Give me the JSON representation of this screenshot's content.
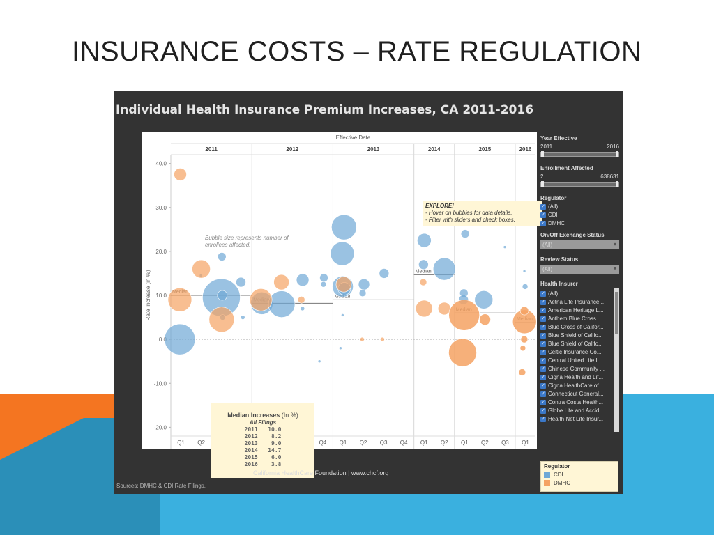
{
  "slide": {
    "title": "INSURANCE COSTS – RATE REGULATION"
  },
  "dashboard": {
    "title": "Individual Health Insurance Premium Increases, CA 2011-2016",
    "effective_date_label": "Effective Date",
    "footer": "California HealthCare Foundation  |  www.chcf.org",
    "sources": "Sources:  DMHC &  CDI Rate Filings."
  },
  "notes": {
    "bubble_size": "Bubble size represents number of enrollees affected.",
    "explore_title": "EXPLORE!",
    "explore_line1": "- Hover on bubbles for data details.",
    "explore_line2": "- Filter with sliders and check boxes."
  },
  "median_box": {
    "title": "Median Increases",
    "unit": "(In %)",
    "subtitle": "All Filings",
    "rows": "2011   10.0\n2012    8.2\n2013    9.0\n2014   14.7\n2015    6.0\n2016    3.8"
  },
  "filters": {
    "year_effective": {
      "label": "Year Effective",
      "min": "2011",
      "max": "2016"
    },
    "enrollment": {
      "label": "Enrollment Affected",
      "min": "2",
      "max": "638631"
    },
    "regulator": {
      "label": "Regulator",
      "options": [
        "(All)",
        "CDI",
        "DMHC"
      ]
    },
    "exchange_status": {
      "label": "On/Off Exchange Status",
      "value": "(All)"
    },
    "review_status": {
      "label": "Review Status",
      "value": "(All)"
    },
    "health_insurer": {
      "label": "Health Insurer",
      "options": [
        "(All)",
        "Aetna Life Insurance...",
        "American Heritage L...",
        "Anthem Blue Cross ...",
        "Blue Cross of Califor...",
        "Blue Shield of Califo...",
        "Blue Shield of Califo...",
        "Celtic Insurance Co...",
        "Central United Life I...",
        "Chinese Community ...",
        "Cigna Health and Lif...",
        "Cigna HealthCare of...",
        "Connecticut General...",
        "Contra Costa Health...",
        "Globe Life and Accid...",
        "Health Net Life Insur..."
      ]
    }
  },
  "legend": {
    "title": "Regulator",
    "items": [
      {
        "label": "CDI",
        "color": "#6fa8d6"
      },
      {
        "label": "DMHC",
        "color": "#f5a263"
      }
    ]
  },
  "chart_data": {
    "type": "scatter",
    "title": "Individual Health Insurance Premium Increases, CA 2011-2016",
    "ylabel": "Rate Increase (in %)",
    "xlabel": "Effective Date",
    "ylim": [
      -22,
      42
    ],
    "yticks": [
      "40.0",
      "30.0",
      "20.0",
      "10.0",
      "0.0",
      "-10.0",
      "-20.0"
    ],
    "years": [
      "2011",
      "2012",
      "2013",
      "2014",
      "2015",
      "2016"
    ],
    "quarters": [
      "Q1",
      "Q2",
      "Q3",
      "Q4",
      "Q1",
      "Q2",
      "Q3",
      "Q4",
      "Q1",
      "Q2",
      "Q3",
      "Q4",
      "Q1",
      "Q2",
      "Q1",
      "Q2",
      "Q3",
      "Q1"
    ],
    "medians": [
      {
        "year": "2011",
        "value": 10.0,
        "label": "Median"
      },
      {
        "year": "2012",
        "value": 8.2,
        "label": "Median"
      },
      {
        "year": "2013",
        "value": 9.0,
        "label": "Median"
      },
      {
        "year": "2014",
        "value": 14.7,
        "label": "Median"
      },
      {
        "year": "2015",
        "value": 6.0,
        "label": "Median"
      },
      {
        "year": "2016",
        "value": 3.8,
        "label": "Median"
      }
    ],
    "series": [
      {
        "name": "CDI",
        "color": "#6fa8d6",
        "points": [
          {
            "q": 0,
            "y": 0.0,
            "s": 22
          },
          {
            "q": 1,
            "y": 14.5,
            "s": 2
          },
          {
            "q": 2,
            "y": 18.8,
            "s": 6
          },
          {
            "q": 2,
            "y": 9.5,
            "s": 27
          },
          {
            "q": 2,
            "y": 10.0,
            "s": 7
          },
          {
            "q": 2,
            "y": 5.0,
            "s": 4
          },
          {
            "q": 3,
            "y": 13.0,
            "s": 7
          },
          {
            "q": 3,
            "y": 5.0,
            "s": 3
          },
          {
            "q": 4,
            "y": 8.2,
            "s": 16
          },
          {
            "q": 5,
            "y": 8.0,
            "s": 19
          },
          {
            "q": 6,
            "y": 13.5,
            "s": 9
          },
          {
            "q": 6,
            "y": 7.0,
            "s": 3
          },
          {
            "q": 7,
            "y": 14.0,
            "s": 6
          },
          {
            "q": 7,
            "y": 12.5,
            "s": 4
          },
          {
            "q": 7,
            "y": -5.0,
            "s": 2
          },
          {
            "q": 8,
            "y": 25.5,
            "s": 18
          },
          {
            "q": 8,
            "y": 19.5,
            "s": 17
          },
          {
            "q": 8,
            "y": 12.0,
            "s": 15
          },
          {
            "q": 8,
            "y": 11.5,
            "s": 9
          },
          {
            "q": 8,
            "y": 5.5,
            "s": 2
          },
          {
            "q": 8,
            "y": -2.0,
            "s": 2
          },
          {
            "q": 9,
            "y": 12.5,
            "s": 8
          },
          {
            "q": 9,
            "y": 10.5,
            "s": 5
          },
          {
            "q": 10,
            "y": 15.0,
            "s": 7
          },
          {
            "q": 12,
            "y": 22.5,
            "s": 10
          },
          {
            "q": 12,
            "y": 17.0,
            "s": 7
          },
          {
            "q": 13,
            "y": 16.0,
            "s": 16
          },
          {
            "q": 14,
            "y": 24.0,
            "s": 6
          },
          {
            "q": 14,
            "y": 10.5,
            "s": 6
          },
          {
            "q": 14,
            "y": 9.0,
            "s": 7
          },
          {
            "q": 15,
            "y": 9.0,
            "s": 13
          },
          {
            "q": 16,
            "y": 21.0,
            "s": 2
          },
          {
            "q": 17,
            "y": 12.0,
            "s": 4
          },
          {
            "q": 17,
            "y": 15.5,
            "s": 2
          }
        ]
      },
      {
        "name": "DMHC",
        "color": "#f5a263",
        "points": [
          {
            "q": 0,
            "y": 37.5,
            "s": 9
          },
          {
            "q": 0,
            "y": 9.0,
            "s": 17
          },
          {
            "q": 1,
            "y": 16.0,
            "s": 13
          },
          {
            "q": 2,
            "y": 4.5,
            "s": 18
          },
          {
            "q": 4,
            "y": 9.0,
            "s": 16
          },
          {
            "q": 5,
            "y": 13.0,
            "s": 11
          },
          {
            "q": 6,
            "y": 9.0,
            "s": 5
          },
          {
            "q": 8,
            "y": 12.5,
            "s": 11
          },
          {
            "q": 9,
            "y": 0.0,
            "s": 3
          },
          {
            "q": 10,
            "y": 0.0,
            "s": 3
          },
          {
            "q": 12,
            "y": 13.0,
            "s": 5
          },
          {
            "q": 12,
            "y": 7.0,
            "s": 12
          },
          {
            "q": 13,
            "y": 7.0,
            "s": 9
          },
          {
            "q": 14,
            "y": 5.5,
            "s": 22
          },
          {
            "q": 14,
            "y": -3.0,
            "s": 20
          },
          {
            "q": 15,
            "y": 4.5,
            "s": 8
          },
          {
            "q": 17,
            "y": 4.0,
            "s": 17
          },
          {
            "q": 17,
            "y": 6.5,
            "s": 6
          },
          {
            "q": 17,
            "y": 0.0,
            "s": 5
          },
          {
            "q": 17,
            "y": -2.0,
            "s": 4
          },
          {
            "q": 17,
            "y": -7.5,
            "s": 5
          }
        ]
      }
    ]
  }
}
